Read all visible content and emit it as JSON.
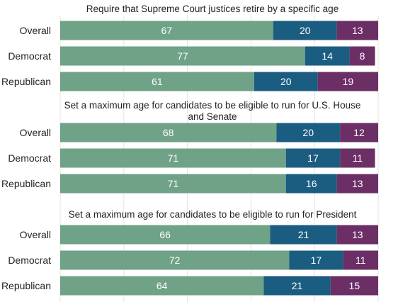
{
  "chart_data": {
    "type": "bar",
    "orientation": "horizontal",
    "stacked": true,
    "grid": true,
    "xlim": [
      0,
      100
    ],
    "colors": [
      "#6fa287",
      "#1b5d80",
      "#6b2f66"
    ],
    "panels": [
      {
        "title": "Require that Supreme Court justices retire by a specific age",
        "categories": [
          "Overall",
          "Democrat",
          "Republican"
        ],
        "series": [
          {
            "values": [
              67,
              77,
              61
            ]
          },
          {
            "values": [
              20,
              14,
              20
            ]
          },
          {
            "values": [
              13,
              8,
              19
            ]
          }
        ]
      },
      {
        "title": "Set a maximum age for candidates to be eligible to run for U.S. House and Senate",
        "categories": [
          "Overall",
          "Democrat",
          "Republican"
        ],
        "series": [
          {
            "values": [
              68,
              71,
              71
            ]
          },
          {
            "values": [
              20,
              17,
              16
            ]
          },
          {
            "values": [
              12,
              11,
              13
            ]
          }
        ]
      },
      {
        "title": "Set a maximum age for candidates to be eligible to run for President",
        "categories": [
          "Overall",
          "Democrat",
          "Republican"
        ],
        "series": [
          {
            "values": [
              66,
              72,
              64
            ]
          },
          {
            "values": [
              21,
              17,
              21
            ]
          },
          {
            "values": [
              13,
              11,
              15
            ]
          }
        ]
      }
    ]
  }
}
